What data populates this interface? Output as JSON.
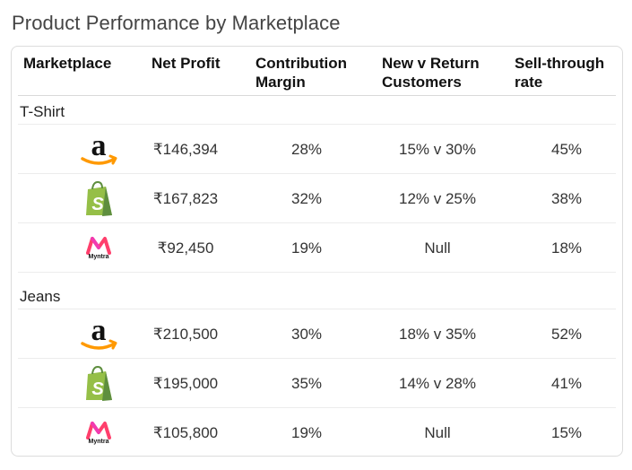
{
  "page_title": "Product Performance by Marketplace",
  "columns": {
    "marketplace": "Marketplace",
    "net_profit": "Net Profit",
    "contribution_margin_1": "Contribution",
    "contribution_margin_2": "Margin",
    "new_v_return_1": "New v Return",
    "new_v_return_2": "Customers",
    "sell_through_1": "Sell-through",
    "sell_through_2": "rate"
  },
  "groups": [
    {
      "label": "T-Shirt",
      "rows": [
        {
          "marketplace_icon": "amazon-logo-icon",
          "net_profit": "₹146,394",
          "contribution_margin": "28%",
          "new_v_return": "15% v 30%",
          "sell_through": "45%"
        },
        {
          "marketplace_icon": "shopify-logo-icon",
          "net_profit": "₹167,823",
          "contribution_margin": "32%",
          "new_v_return": "12% v 25%",
          "sell_through": "38%"
        },
        {
          "marketplace_icon": "myntra-logo-icon",
          "logo_text": "Myntra",
          "net_profit": "₹92,450",
          "contribution_margin": "19%",
          "new_v_return": "Null",
          "sell_through": "18%"
        }
      ]
    },
    {
      "label": "Jeans",
      "rows": [
        {
          "marketplace_icon": "amazon-logo-icon",
          "net_profit": "₹210,500",
          "contribution_margin": "30%",
          "new_v_return": "18% v 35%",
          "sell_through": "52%"
        },
        {
          "marketplace_icon": "shopify-logo-icon",
          "net_profit": "₹195,000",
          "contribution_margin": "35%",
          "new_v_return": "14% v 28%",
          "sell_through": "41%"
        },
        {
          "marketplace_icon": "myntra-logo-icon",
          "logo_text": "Myntra",
          "net_profit": "₹105,800",
          "contribution_margin": "19%",
          "new_v_return": "Null",
          "sell_through": "15%"
        }
      ]
    }
  ],
  "colors": {
    "amazon_orange": "#ff9900",
    "shopify_green": "#95bf47",
    "shopify_dark": "#5e8e3e",
    "myntra_pink": "#ff3f6c",
    "myntra_orange": "#f13ab1"
  }
}
